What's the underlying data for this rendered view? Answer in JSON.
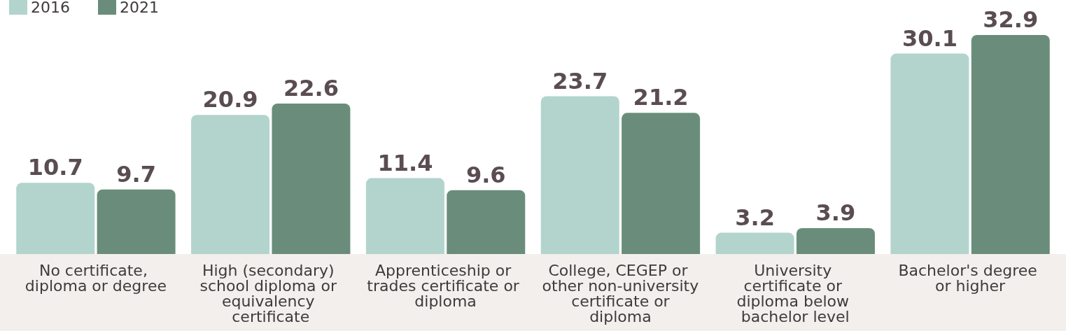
{
  "chart_data": {
    "type": "bar",
    "categories": [
      "No certificate, diploma or degree",
      "High (secondary) school diploma or equivalency certificate",
      "Apprenticeship or trades certificate or diploma",
      "College, CEGEP or other non-university certificate or diploma",
      "University certificate or diploma below bachelor level",
      "Bachelor's degree or higher"
    ],
    "series": [
      {
        "name": "2016",
        "color": "#b2d4cd",
        "values": [
          10.7,
          20.9,
          11.4,
          23.7,
          3.2,
          30.1
        ]
      },
      {
        "name": "2021",
        "color": "#6a8d7b",
        "values": [
          9.7,
          22.6,
          9.6,
          21.2,
          3.9,
          32.9
        ]
      }
    ],
    "data_labels": true,
    "legend": "top left"
  }
}
